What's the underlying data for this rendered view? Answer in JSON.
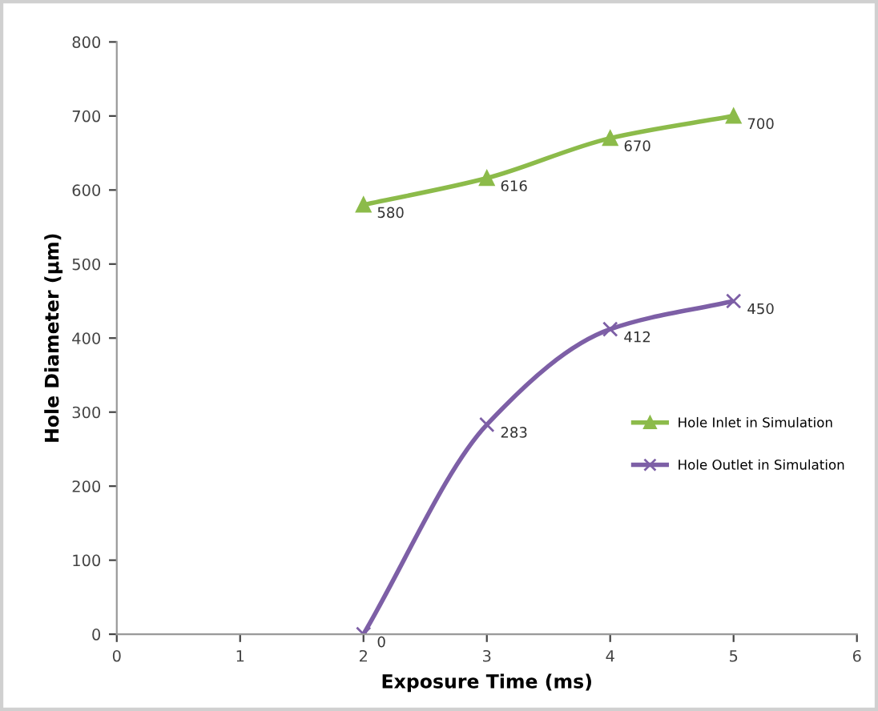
{
  "chart_data": {
    "type": "line",
    "xlabel": "Exposure Time (ms)",
    "ylabel": "Hole Diameter (µm)",
    "x": [
      2,
      3,
      4,
      5
    ],
    "series": [
      {
        "name": "Hole Inlet in Simulation",
        "color": "#8cbb4a",
        "values": [
          580,
          616,
          670,
          700
        ],
        "marker": "triangle"
      },
      {
        "name": "Hole Outlet in Simulation",
        "color": "#7d5fa6",
        "values": [
          0,
          283,
          412,
          450
        ],
        "marker": "cross"
      }
    ],
    "xlim": [
      0,
      6
    ],
    "xticks": [
      0,
      1,
      2,
      3,
      4,
      5,
      6
    ],
    "ylim": [
      0,
      800
    ],
    "yticks": [
      0,
      100,
      200,
      300,
      400,
      500,
      600,
      700,
      800
    ],
    "data_labels": true,
    "legend": "right",
    "grid": false,
    "line_style": "solid"
  }
}
